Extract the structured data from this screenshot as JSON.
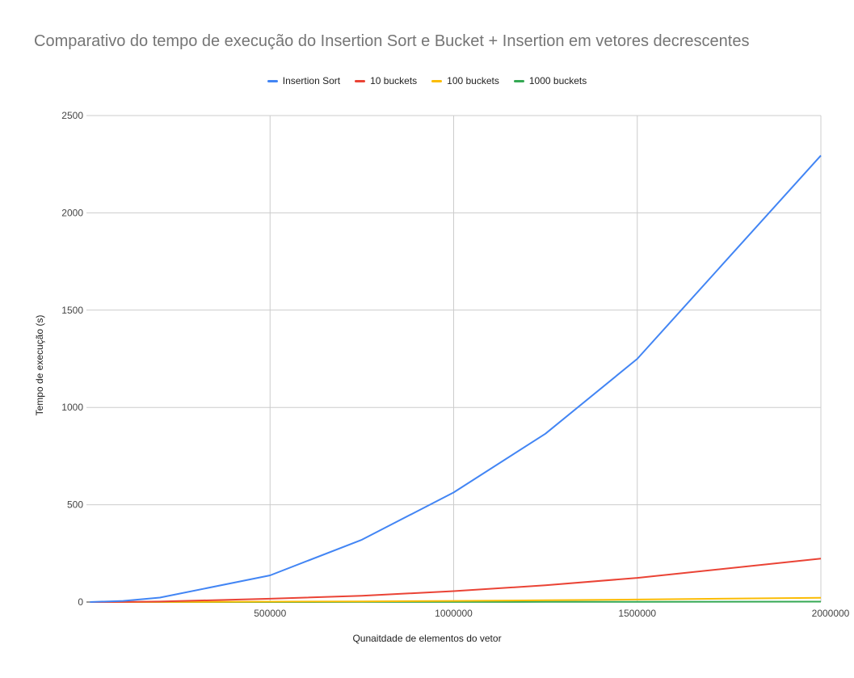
{
  "chart_data": {
    "type": "line",
    "title": "Comparativo do tempo de execução do Insertion Sort e Bucket + Insertion em vetores decrescentes",
    "xlabel": "Qunaitdade de elementos do vetor",
    "ylabel": "Tempo de execução (s)",
    "xlim": [
      0,
      2000000
    ],
    "ylim": [
      0,
      2500
    ],
    "x_ticks": [
      500000,
      1000000,
      1500000,
      2000000
    ],
    "y_ticks": [
      0,
      500,
      1000,
      1500,
      2000,
      2500
    ],
    "grid": true,
    "legend_position": "top",
    "x": [
      10000,
      100000,
      200000,
      500000,
      750000,
      1000000,
      1250000,
      1500000,
      2000000
    ],
    "series": [
      {
        "name": "Insertion Sort",
        "color": "#4285f4",
        "values": [
          0.1,
          6,
          23,
          137,
          320,
          563,
          865,
          1250,
          2295
        ]
      },
      {
        "name": "10 buckets",
        "color": "#ea4335",
        "values": [
          0,
          0.6,
          2.5,
          17,
          32,
          56,
          86,
          124,
          223
        ]
      },
      {
        "name": "100 buckets",
        "color": "#fbbc04",
        "values": [
          0,
          0.1,
          0.3,
          2,
          3.5,
          6,
          9,
          13,
          22
        ]
      },
      {
        "name": "1000 buckets",
        "color": "#34a853",
        "values": [
          0,
          0,
          0,
          0.2,
          0.4,
          0.6,
          0.9,
          1.3,
          2.2
        ]
      }
    ]
  }
}
